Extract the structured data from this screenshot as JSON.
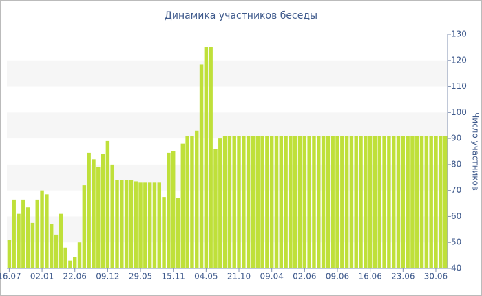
{
  "chart_data": {
    "type": "bar",
    "title": "Динамика участников беседы",
    "y_axis_label": "Число участников",
    "categories": [
      "16.07",
      null,
      null,
      null,
      null,
      null,
      null,
      "02.01",
      null,
      null,
      null,
      null,
      null,
      null,
      "22.06",
      null,
      null,
      null,
      null,
      null,
      null,
      "09.12",
      null,
      null,
      null,
      null,
      null,
      null,
      "29.05",
      null,
      null,
      null,
      null,
      null,
      null,
      "15.11",
      null,
      null,
      null,
      null,
      null,
      null,
      "04.05",
      null,
      null,
      null,
      null,
      null,
      null,
      "21.10",
      null,
      null,
      null,
      null,
      null,
      null,
      "09.04",
      null,
      null,
      null,
      null,
      null,
      null,
      "02.06",
      null,
      null,
      null,
      null,
      null,
      null,
      "09.06",
      null,
      null,
      null,
      null,
      null,
      null,
      "16.06",
      null,
      null,
      null,
      null,
      null,
      null,
      "23.06",
      null,
      null,
      null,
      null,
      null,
      null,
      "30.06",
      null,
      null
    ],
    "values": [
      51,
      66.5,
      61,
      66.5,
      63.5,
      57.5,
      66.5,
      70,
      68.5,
      57,
      53,
      61,
      48,
      43,
      44.5,
      50,
      72,
      84.5,
      82,
      79,
      84,
      89,
      80,
      74,
      74,
      74,
      74,
      73.5,
      73,
      73,
      73,
      73,
      73,
      67.5,
      84.5,
      85,
      67,
      88,
      91,
      91,
      93,
      118.5,
      125,
      125,
      86,
      90,
      91,
      91,
      91,
      91,
      91,
      91,
      91,
      91,
      91,
      91,
      91,
      91,
      91,
      91,
      91,
      91,
      91,
      91,
      91,
      91,
      91,
      91,
      91,
      91,
      91,
      91,
      91,
      91,
      91,
      91,
      91,
      91,
      91,
      91,
      91,
      91,
      91,
      91,
      91,
      91,
      91,
      91,
      91,
      91,
      91,
      91,
      91,
      91
    ],
    "color": "#bfe03a",
    "ylim": [
      40,
      130
    ],
    "yticks": [
      40,
      50,
      60,
      70,
      80,
      90,
      100,
      110,
      120,
      130
    ],
    "y_axis_side": "right",
    "alternate_bands": true
  }
}
